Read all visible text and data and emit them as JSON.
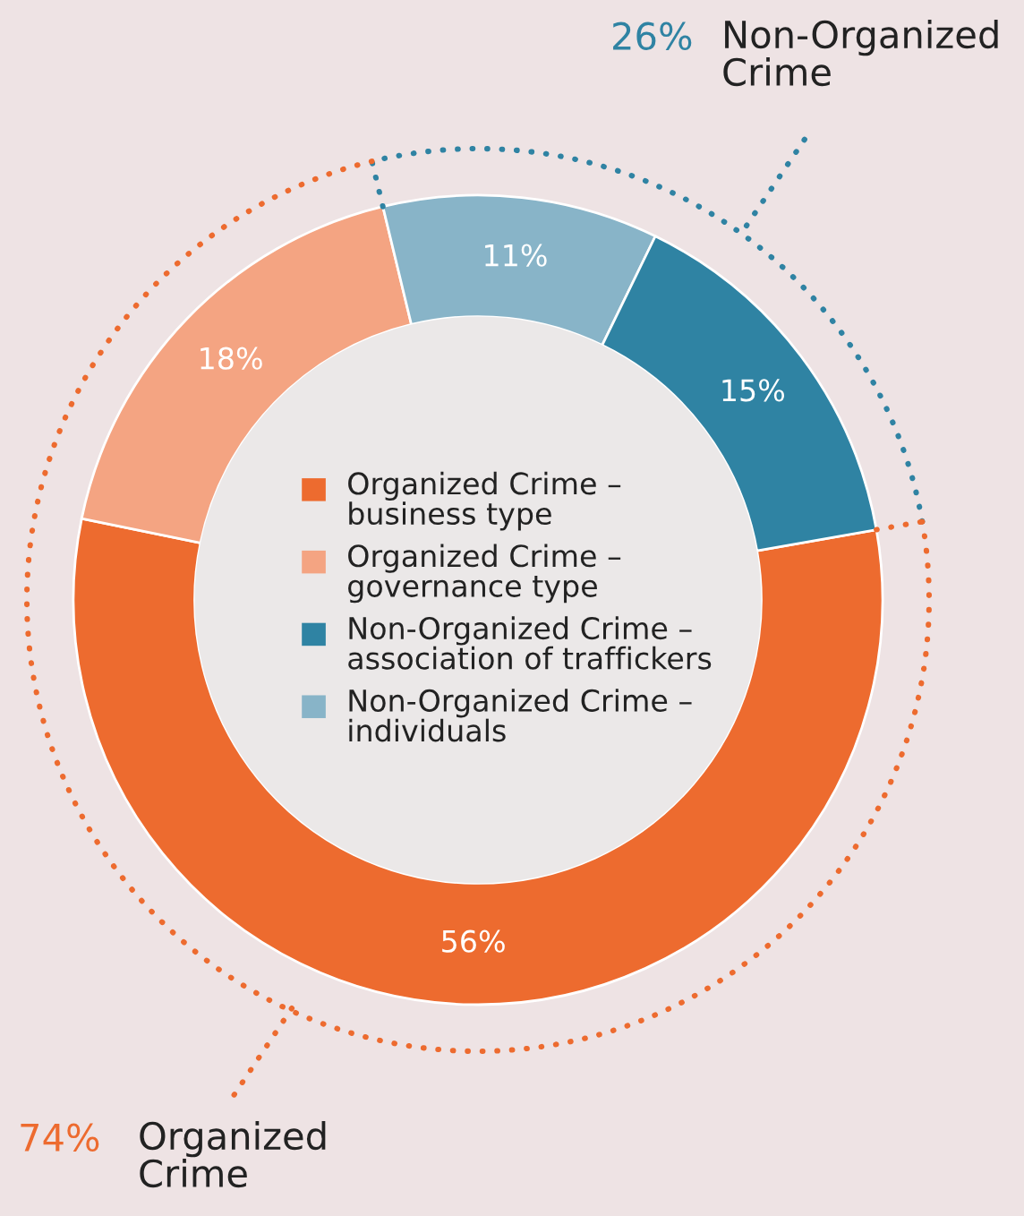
{
  "chart_data": {
    "type": "donut",
    "categories": [
      "Organized Crime –\nbusiness type",
      "Organized Crime –\ngovernance type",
      "Non-Organized Crime –\nassociation of traffickers",
      "Non-Organized Crime –\nindividuals"
    ],
    "values": [
      56,
      18,
      15,
      11
    ],
    "colors": [
      "#ed6b2f",
      "#f4a482",
      "#2f83a3",
      "#88b4c8"
    ],
    "value_labels": [
      "56%",
      "18%",
      "15%",
      "11%"
    ],
    "legend": "center",
    "annotations": [
      "26% Non-Organized\nCrime",
      "74% Organized\nCrime"
    ]
  }
}
